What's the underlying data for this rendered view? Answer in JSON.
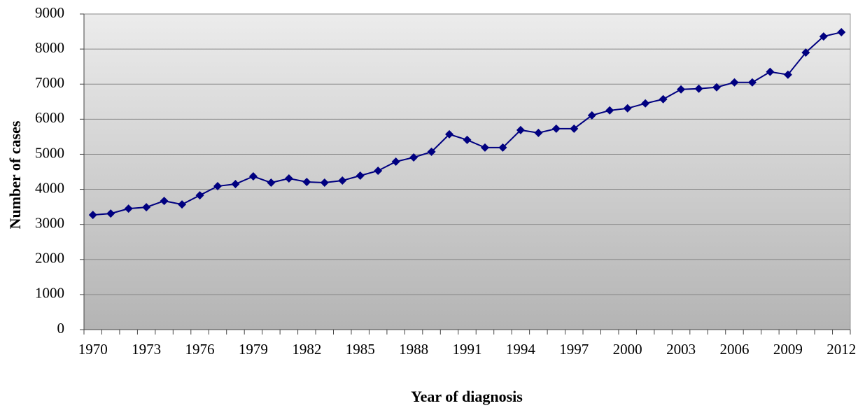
{
  "chart_data": {
    "type": "line",
    "x_label": "Year of diagnosis",
    "y_label": "Number of cases",
    "categories": [
      "1970",
      null,
      null,
      "1973",
      null,
      null,
      "1976",
      null,
      null,
      "1979",
      null,
      null,
      "1982",
      null,
      null,
      "1985",
      null,
      null,
      "1988",
      null,
      null,
      "1991",
      null,
      null,
      "1994",
      null,
      null,
      "1997",
      null,
      null,
      "2000",
      null,
      null,
      "2003",
      null,
      null,
      "2006",
      null,
      null,
      "2009",
      null,
      null,
      "2012"
    ],
    "series": [
      {
        "color": "#000080",
        "values": [
          3270,
          3310,
          3450,
          3490,
          3670,
          3570,
          3830,
          4090,
          4150,
          4370,
          4190,
          4310,
          4210,
          4190,
          4250,
          4390,
          4530,
          4790,
          4910,
          5070,
          5570,
          5410,
          5190,
          5190,
          5690,
          5610,
          5730,
          5730,
          6110,
          6250,
          6310,
          6450,
          6570,
          6850,
          6870,
          6910,
          7050,
          7050,
          7350,
          7270,
          7900,
          8360,
          8480
        ]
      }
    ],
    "ylim": [
      0,
      9000
    ],
    "yticks": [
      0,
      1000,
      2000,
      3000,
      4000,
      5000,
      6000,
      7000,
      8000,
      9000
    ],
    "grid": true
  }
}
